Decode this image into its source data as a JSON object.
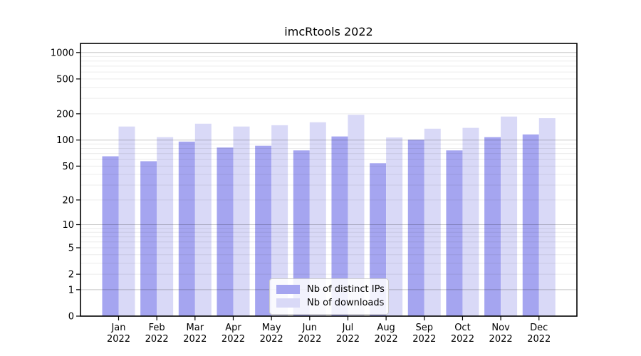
{
  "title": "imcRtools 2022",
  "chart_data": {
    "type": "bar",
    "title": "imcRtools 2022",
    "scale": "log1p",
    "xlabel": "",
    "ylabel": "",
    "ylim": [
      0,
      1270
    ],
    "grid": "horizontal",
    "legend_position": "bottom-center",
    "categories": [
      "Jan 2022",
      "Feb 2022",
      "Mar 2022",
      "Apr 2022",
      "May 2022",
      "Jun 2022",
      "Jul 2022",
      "Aug 2022",
      "Sep 2022",
      "Oct 2022",
      "Nov 2022",
      "Dec 2022"
    ],
    "series": [
      {
        "name": "Nb of distinct IPs",
        "color": "#a5a5f0",
        "values": [
          65,
          57,
          96,
          82,
          86,
          76,
          110,
          54,
          101,
          76,
          108,
          116
        ]
      },
      {
        "name": "Nb of downloads",
        "color": "#d9d9f7",
        "values": [
          143,
          108,
          154,
          143,
          148,
          160,
          195,
          107,
          135,
          138,
          186,
          178
        ]
      }
    ],
    "yticks": [
      0,
      1,
      2,
      5,
      10,
      20,
      50,
      100,
      200,
      500,
      1000
    ],
    "major_gridlines": [
      1,
      10,
      100,
      1000
    ]
  },
  "colors": {
    "spine": "#000000",
    "major_grid": "#c8c8c8",
    "minor_grid": "#ececec",
    "text": "#000000"
  }
}
